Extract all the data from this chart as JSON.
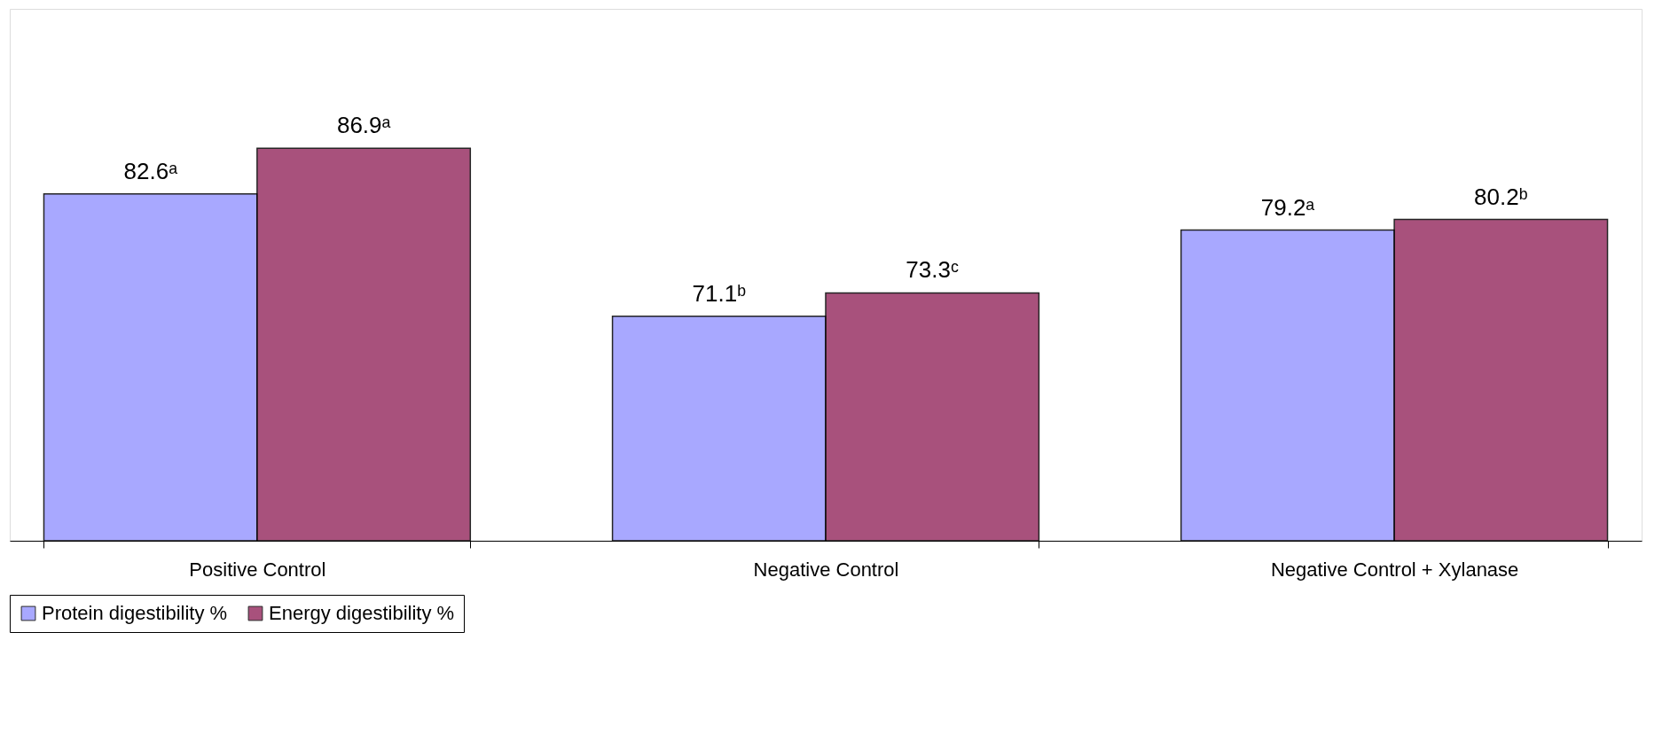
{
  "chart_data": {
    "type": "bar",
    "categories": [
      "Positive Control",
      "Negative Control",
      "Negative Control + Xylanase"
    ],
    "series": [
      {
        "name": "Protein digestibility %",
        "color": "#9999ff",
        "values": [
          82.6,
          71.1,
          79.2
        ],
        "value_labels": [
          "82.6ᵃ",
          "71.1ᵇ",
          "79.2ᵃ"
        ]
      },
      {
        "name": "Energy digestibility %",
        "color": "#993366",
        "values": [
          86.9,
          73.3,
          80.2
        ],
        "value_labels": [
          "86.9ᵃ",
          "73.3ᶜ",
          "80.2ᵇ"
        ]
      }
    ],
    "ylim": [
      50,
      100
    ],
    "legend": "bottom",
    "tick_labels": "x"
  }
}
